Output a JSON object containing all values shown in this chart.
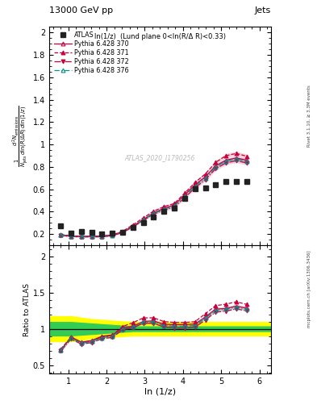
{
  "title": "13000 GeV pp",
  "title_right": "Jets",
  "subtitle": "ln(1/z)  (Lund plane 0<ln(R/Δ R)<0.33)",
  "xlabel": "ln (1/z)",
  "ylabel_ratio": "Ratio to ATLAS",
  "watermark": "ATLAS_2020_I1790256",
  "right_label_top": "Rivet 3.1.10, ≥ 3.3M events",
  "right_label_bot": "mcplots.cern.ch [arXiv:1306.3436]",
  "xlim": [
    0.5,
    6.3
  ],
  "ylim_main": [
    0.1,
    2.05
  ],
  "ylim_ratio": [
    0.38,
    2.15
  ],
  "yticks_main": [
    0.2,
    0.4,
    0.6,
    0.8,
    1.0,
    1.2,
    1.4,
    1.6,
    1.8,
    2.0
  ],
  "yticks_ratio": [
    0.5,
    1.0,
    1.5,
    2.0
  ],
  "xticks": [
    1,
    2,
    3,
    4,
    5,
    6
  ],
  "atlas_x": [
    0.802,
    1.072,
    1.342,
    1.612,
    1.882,
    2.152,
    2.422,
    2.692,
    2.962,
    3.232,
    3.502,
    3.772,
    4.042,
    4.312,
    4.582,
    4.852,
    5.122,
    5.392,
    5.662
  ],
  "atlas_y": [
    0.274,
    0.207,
    0.222,
    0.216,
    0.204,
    0.211,
    0.218,
    0.261,
    0.3,
    0.352,
    0.405,
    0.435,
    0.52,
    0.601,
    0.611,
    0.637,
    0.672,
    0.671,
    0.67
  ],
  "atlas_color": "#222222",
  "py370_x": [
    0.802,
    1.072,
    1.342,
    1.612,
    1.882,
    2.152,
    2.422,
    2.692,
    2.962,
    3.232,
    3.502,
    3.772,
    4.042,
    4.312,
    4.582,
    4.852,
    5.122,
    5.392,
    5.662
  ],
  "py370_y": [
    0.193,
    0.183,
    0.181,
    0.181,
    0.183,
    0.193,
    0.22,
    0.27,
    0.33,
    0.39,
    0.43,
    0.46,
    0.55,
    0.64,
    0.71,
    0.81,
    0.86,
    0.88,
    0.86
  ],
  "py370_err": [
    0.008,
    0.005,
    0.004,
    0.004,
    0.004,
    0.004,
    0.005,
    0.006,
    0.007,
    0.008,
    0.009,
    0.01,
    0.011,
    0.013,
    0.014,
    0.016,
    0.017,
    0.018,
    0.018
  ],
  "py371_x": [
    0.802,
    1.072,
    1.342,
    1.612,
    1.882,
    2.152,
    2.422,
    2.692,
    2.962,
    3.232,
    3.502,
    3.772,
    4.042,
    4.312,
    4.582,
    4.852,
    5.122,
    5.392,
    5.662
  ],
  "py371_y": [
    0.197,
    0.183,
    0.18,
    0.18,
    0.181,
    0.192,
    0.225,
    0.283,
    0.345,
    0.405,
    0.445,
    0.473,
    0.565,
    0.66,
    0.737,
    0.84,
    0.9,
    0.92,
    0.895
  ],
  "py371_err": [
    0.009,
    0.005,
    0.004,
    0.004,
    0.004,
    0.005,
    0.005,
    0.007,
    0.008,
    0.009,
    0.01,
    0.011,
    0.012,
    0.014,
    0.015,
    0.017,
    0.018,
    0.019,
    0.019
  ],
  "py372_x": [
    0.802,
    1.072,
    1.342,
    1.612,
    1.882,
    2.152,
    2.422,
    2.692,
    2.962,
    3.232,
    3.502,
    3.772,
    4.042,
    4.312,
    4.582,
    4.852,
    5.122,
    5.392,
    5.662
  ],
  "py372_y": [
    0.19,
    0.178,
    0.175,
    0.175,
    0.176,
    0.186,
    0.215,
    0.265,
    0.323,
    0.378,
    0.415,
    0.44,
    0.525,
    0.613,
    0.685,
    0.783,
    0.835,
    0.855,
    0.835
  ],
  "py372_err": [
    0.008,
    0.005,
    0.004,
    0.004,
    0.004,
    0.004,
    0.005,
    0.006,
    0.007,
    0.008,
    0.009,
    0.01,
    0.011,
    0.013,
    0.014,
    0.016,
    0.017,
    0.018,
    0.018
  ],
  "py376_x": [
    0.802,
    1.072,
    1.342,
    1.612,
    1.882,
    2.152,
    2.422,
    2.692,
    2.962,
    3.232,
    3.502,
    3.772,
    4.042,
    4.312,
    4.582,
    4.852,
    5.122,
    5.392,
    5.662
  ],
  "py376_y": [
    0.193,
    0.181,
    0.178,
    0.178,
    0.179,
    0.189,
    0.218,
    0.268,
    0.328,
    0.385,
    0.423,
    0.45,
    0.538,
    0.628,
    0.7,
    0.8,
    0.853,
    0.872,
    0.85
  ],
  "py376_err": [
    0.008,
    0.005,
    0.004,
    0.004,
    0.004,
    0.004,
    0.005,
    0.006,
    0.007,
    0.008,
    0.009,
    0.01,
    0.011,
    0.013,
    0.014,
    0.016,
    0.017,
    0.018,
    0.018
  ],
  "color_370": "#c8003c",
  "color_371": "#c8003c",
  "color_372": "#c8003c",
  "color_376": "#009090",
  "yellow_band_x": [
    0.5,
    0.802,
    1.072,
    1.342,
    1.612,
    1.882,
    2.152,
    2.422,
    2.692,
    2.962,
    3.232,
    3.502,
    3.772,
    4.042,
    4.312,
    4.582,
    4.852,
    5.122,
    5.392,
    5.662,
    6.3
  ],
  "yellow_band_lo": [
    0.82,
    0.82,
    0.82,
    0.84,
    0.86,
    0.87,
    0.88,
    0.89,
    0.9,
    0.9,
    0.9,
    0.9,
    0.9,
    0.9,
    0.9,
    0.9,
    0.9,
    0.9,
    0.9,
    0.9,
    0.9
  ],
  "yellow_band_hi": [
    1.18,
    1.18,
    1.18,
    1.16,
    1.14,
    1.13,
    1.12,
    1.11,
    1.1,
    1.1,
    1.1,
    1.1,
    1.1,
    1.1,
    1.1,
    1.1,
    1.1,
    1.1,
    1.1,
    1.1,
    1.1
  ],
  "green_band_x": [
    0.5,
    0.802,
    1.072,
    1.342,
    1.612,
    1.882,
    2.152,
    2.422,
    2.692,
    2.962,
    3.232,
    3.502,
    3.772,
    4.042,
    4.312,
    4.582,
    4.852,
    5.122,
    5.392,
    5.662,
    6.3
  ],
  "green_band_lo": [
    0.9,
    0.9,
    0.9,
    0.91,
    0.92,
    0.93,
    0.94,
    0.95,
    0.96,
    0.96,
    0.96,
    0.96,
    0.96,
    0.96,
    0.96,
    0.96,
    0.96,
    0.96,
    0.96,
    0.96,
    0.96
  ],
  "green_band_hi": [
    1.1,
    1.1,
    1.1,
    1.09,
    1.08,
    1.07,
    1.06,
    1.05,
    1.04,
    1.04,
    1.04,
    1.04,
    1.04,
    1.04,
    1.04,
    1.04,
    1.04,
    1.04,
    1.04,
    1.04,
    1.04
  ]
}
